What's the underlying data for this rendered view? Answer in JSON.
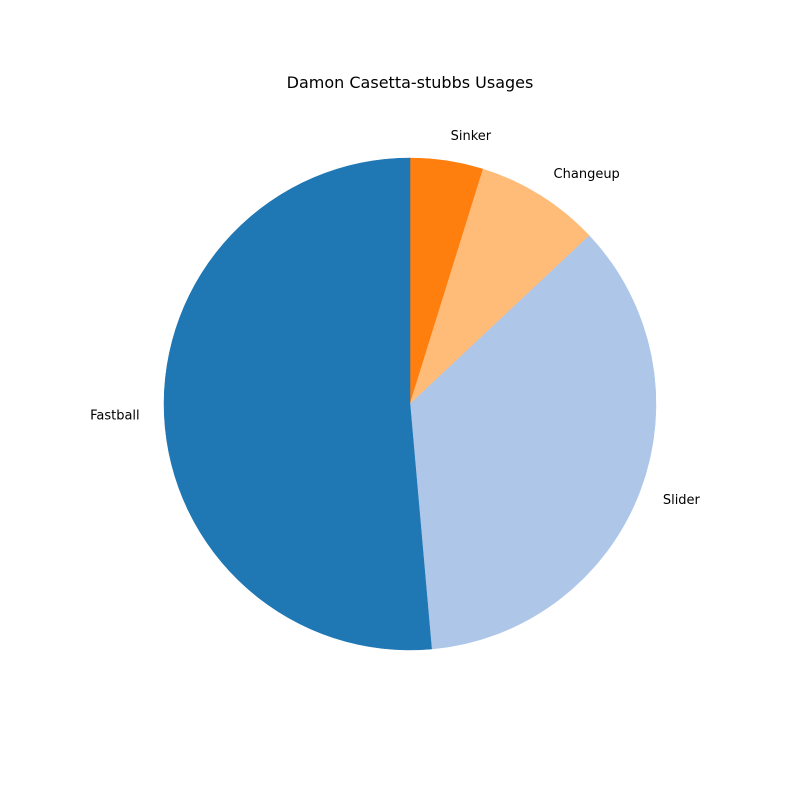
{
  "chart_data": {
    "type": "pie",
    "title": "Damon Casetta-stubbs Usages",
    "start_angle_deg": 90,
    "direction": "clockwise",
    "slices": [
      {
        "label": "Sinker",
        "value": 4.8,
        "color": "#ff7f0e"
      },
      {
        "label": "Changeup",
        "value": 8.2,
        "color": "#ffbb78"
      },
      {
        "label": "Slider",
        "value": 35.6,
        "color": "#aec7e8"
      },
      {
        "label": "Fastball",
        "value": 51.4,
        "color": "#1f77b4"
      }
    ]
  }
}
